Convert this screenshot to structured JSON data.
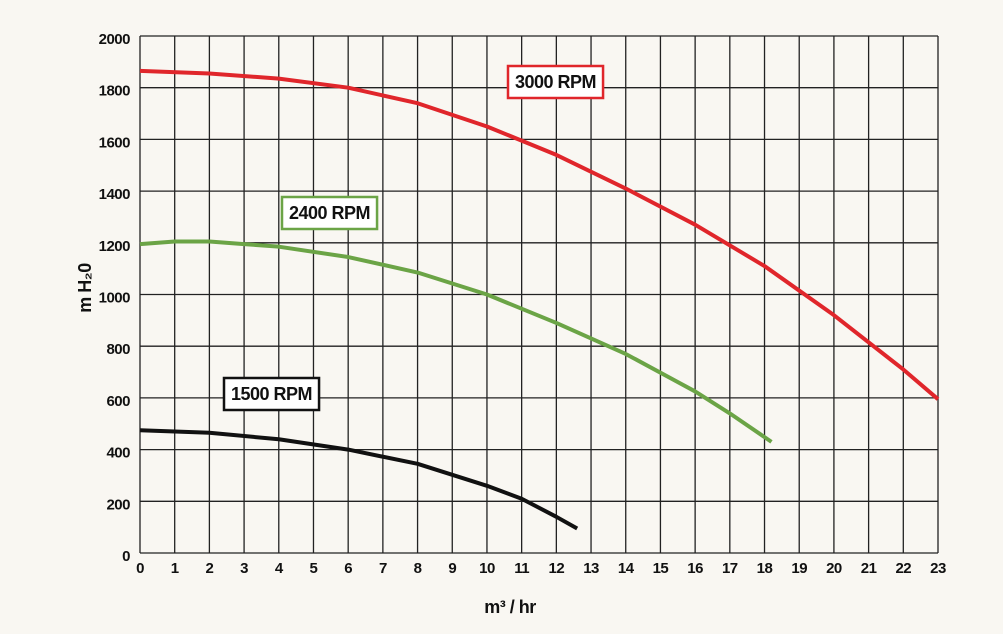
{
  "chart_data": {
    "type": "line",
    "xlabel": "m³ / hr",
    "ylabel": "m H₂0",
    "xlim": [
      0,
      23
    ],
    "xticks": [
      0,
      1,
      2,
      3,
      4,
      5,
      6,
      7,
      8,
      9,
      10,
      11,
      12,
      13,
      14,
      15,
      16,
      17,
      18,
      19,
      20,
      21,
      22,
      23
    ],
    "ylim": [
      0,
      2000
    ],
    "yticks": [
      0,
      200,
      400,
      600,
      800,
      1000,
      1200,
      1400,
      1600,
      1800,
      2000
    ],
    "grid": true,
    "series": [
      {
        "name": "3000 RPM",
        "color": "#e0262b",
        "x": [
          0,
          2,
          4,
          6,
          8,
          10,
          12,
          14,
          16,
          18,
          20,
          22,
          23
        ],
        "values": [
          1865,
          1855,
          1835,
          1800,
          1740,
          1650,
          1540,
          1410,
          1270,
          1110,
          920,
          710,
          595
        ]
      },
      {
        "name": "2400 RPM",
        "color": "#6ba446",
        "x": [
          0,
          1,
          2,
          3,
          4,
          6,
          8,
          10,
          12,
          14,
          16,
          17,
          18.2
        ],
        "values": [
          1195,
          1205,
          1205,
          1195,
          1185,
          1145,
          1085,
          1000,
          890,
          770,
          625,
          540,
          430
        ]
      },
      {
        "name": "1500 RPM",
        "color": "#111111",
        "x": [
          0,
          2,
          4,
          6,
          8,
          10,
          11,
          12,
          12.6
        ],
        "values": [
          475,
          465,
          440,
          400,
          345,
          260,
          210,
          140,
          95
        ]
      }
    ]
  }
}
